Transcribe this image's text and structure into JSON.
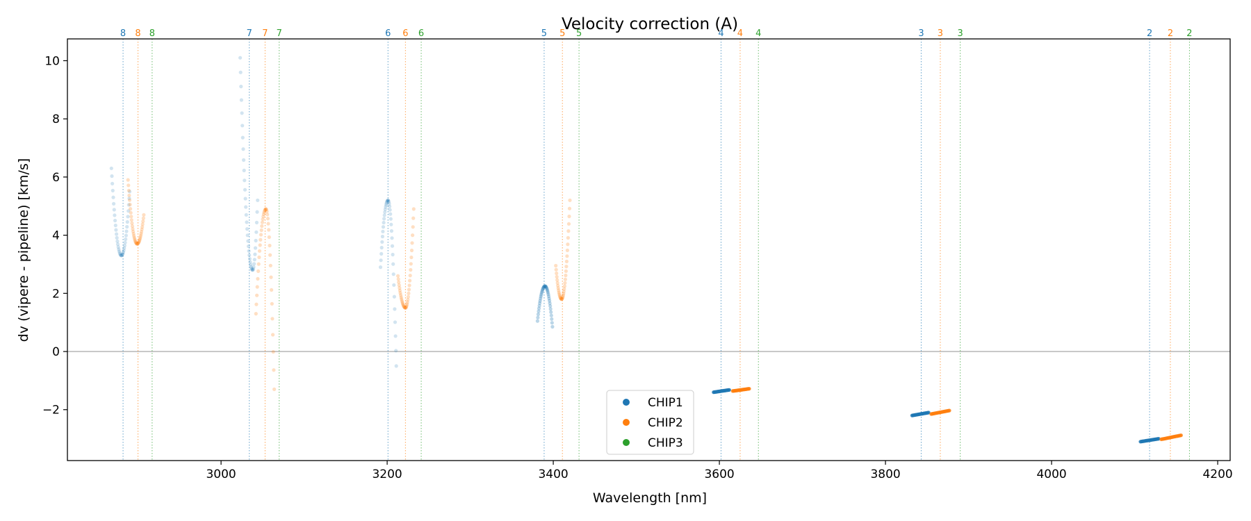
{
  "chart_data": {
    "type": "scatter",
    "title": "Velocity correction (A)",
    "xlabel": "Wavelength [nm]",
    "ylabel": "dv (vipere - pipeline) [km/s]",
    "xlim": [
      2815,
      4215
    ],
    "ylim": [
      -3.75,
      10.75
    ],
    "xticks": [
      3000,
      3200,
      3400,
      3600,
      3800,
      4000,
      4200
    ],
    "yticks": [
      -2,
      0,
      2,
      4,
      6,
      8,
      10
    ],
    "xtick_labels": [
      "3000",
      "3200",
      "3400",
      "3600",
      "3800",
      "4000",
      "4200"
    ],
    "ytick_labels": [
      "−2",
      "0",
      "2",
      "4",
      "6",
      "8",
      "10"
    ],
    "zero_line": 0,
    "colors": {
      "CHIP1": "#1f77b4",
      "CHIP2": "#ff7f0e",
      "CHIP3": "#2ca02c",
      "zero_line": "#a8a8a8"
    },
    "legend": {
      "position": "lower-center",
      "entries": [
        "CHIP1",
        "CHIP2",
        "CHIP3"
      ]
    },
    "order_markers": [
      {
        "label": "8",
        "chip": "CHIP1",
        "x": 2882
      },
      {
        "label": "8",
        "chip": "CHIP2",
        "x": 2900
      },
      {
        "label": "8",
        "chip": "CHIP3",
        "x": 2917
      },
      {
        "label": "7",
        "chip": "CHIP1",
        "x": 3034
      },
      {
        "label": "7",
        "chip": "CHIP2",
        "x": 3053
      },
      {
        "label": "7",
        "chip": "CHIP3",
        "x": 3070
      },
      {
        "label": "6",
        "chip": "CHIP1",
        "x": 3201
      },
      {
        "label": "6",
        "chip": "CHIP2",
        "x": 3222
      },
      {
        "label": "6",
        "chip": "CHIP3",
        "x": 3241
      },
      {
        "label": "5",
        "chip": "CHIP1",
        "x": 3389
      },
      {
        "label": "5",
        "chip": "CHIP2",
        "x": 3411
      },
      {
        "label": "5",
        "chip": "CHIP3",
        "x": 3431
      },
      {
        "label": "4",
        "chip": "CHIP1",
        "x": 3602
      },
      {
        "label": "4",
        "chip": "CHIP2",
        "x": 3625
      },
      {
        "label": "4",
        "chip": "CHIP3",
        "x": 3647
      },
      {
        "label": "3",
        "chip": "CHIP1",
        "x": 3843
      },
      {
        "label": "3",
        "chip": "CHIP2",
        "x": 3866
      },
      {
        "label": "3",
        "chip": "CHIP3",
        "x": 3890
      },
      {
        "label": "2",
        "chip": "CHIP1",
        "x": 4118
      },
      {
        "label": "2",
        "chip": "CHIP2",
        "x": 4143
      },
      {
        "label": "2",
        "chip": "CHIP3",
        "x": 4166
      }
    ],
    "series": [
      {
        "name": "CHIP1",
        "order": "8",
        "kind": "parabola",
        "x_range": [
          2868,
          2890
        ],
        "vertex": [
          2880,
          3.3
        ],
        "right_end": 5.5,
        "left_end": 6.3,
        "alpha": 0.2
      },
      {
        "name": "CHIP2",
        "order": "8",
        "kind": "parabola",
        "x_range": [
          2888,
          2907
        ],
        "vertex": [
          2899,
          3.7
        ],
        "right_end": 4.7,
        "left_end": 5.9,
        "alpha": 0.25
      },
      {
        "name": "CHIP1",
        "order": "7",
        "kind": "parabola",
        "x_range": [
          3023,
          3044
        ],
        "vertex": [
          3038,
          2.8
        ],
        "right_end": 5.2,
        "left_end": 10.1,
        "alpha": 0.2
      },
      {
        "name": "CHIP2",
        "order": "7",
        "kind": "parabola",
        "x_range": [
          3042,
          3064
        ],
        "vertex": [
          3054,
          4.9
        ],
        "right_end": -1.3,
        "left_end": 1.3,
        "alpha": 0.25
      },
      {
        "name": "CHIP1",
        "order": "6",
        "kind": "parabola",
        "x_range": [
          3192,
          3211
        ],
        "vertex": [
          3201,
          5.2
        ],
        "right_end": -0.5,
        "left_end": 2.9,
        "alpha": 0.2
      },
      {
        "name": "CHIP2",
        "order": "6",
        "kind": "parabola",
        "x_range": [
          3213,
          3232
        ],
        "vertex": [
          3222,
          1.5
        ],
        "right_end": 4.9,
        "left_end": 2.6,
        "alpha": 0.25
      },
      {
        "name": "CHIP1",
        "order": "5",
        "kind": "parabola",
        "x_range": [
          3381,
          3399
        ],
        "vertex": [
          3390,
          2.25
        ],
        "right_end": 0.85,
        "left_end": 1.05,
        "alpha": 0.3
      },
      {
        "name": "CHIP2",
        "order": "5",
        "kind": "parabola",
        "x_range": [
          3403,
          3420
        ],
        "vertex": [
          3410,
          1.8
        ],
        "right_end": 5.2,
        "left_end": 2.95,
        "alpha": 0.25
      },
      {
        "name": "CHIP1",
        "order": "4",
        "kind": "line",
        "x_range": [
          3593,
          3612
        ],
        "y_range": [
          -1.4,
          -1.32
        ],
        "alpha": 0.7
      },
      {
        "name": "CHIP2",
        "order": "4",
        "kind": "line",
        "x_range": [
          3616,
          3636
        ],
        "y_range": [
          -1.36,
          -1.28
        ],
        "alpha": 0.7
      },
      {
        "name": "CHIP1",
        "order": "3",
        "kind": "line",
        "x_range": [
          3832,
          3852
        ],
        "y_range": [
          -2.2,
          -2.1
        ],
        "alpha": 0.7
      },
      {
        "name": "CHIP2",
        "order": "3",
        "kind": "line",
        "x_range": [
          3855,
          3877
        ],
        "y_range": [
          -2.15,
          -2.03
        ],
        "alpha": 0.7
      },
      {
        "name": "CHIP1",
        "order": "2",
        "kind": "line",
        "x_range": [
          4107,
          4129
        ],
        "y_range": [
          -3.1,
          -3.0
        ],
        "alpha": 0.7
      },
      {
        "name": "CHIP2",
        "order": "2",
        "kind": "line",
        "x_range": [
          4132,
          4156
        ],
        "y_range": [
          -3.02,
          -2.88
        ],
        "alpha": 0.7
      }
    ]
  }
}
